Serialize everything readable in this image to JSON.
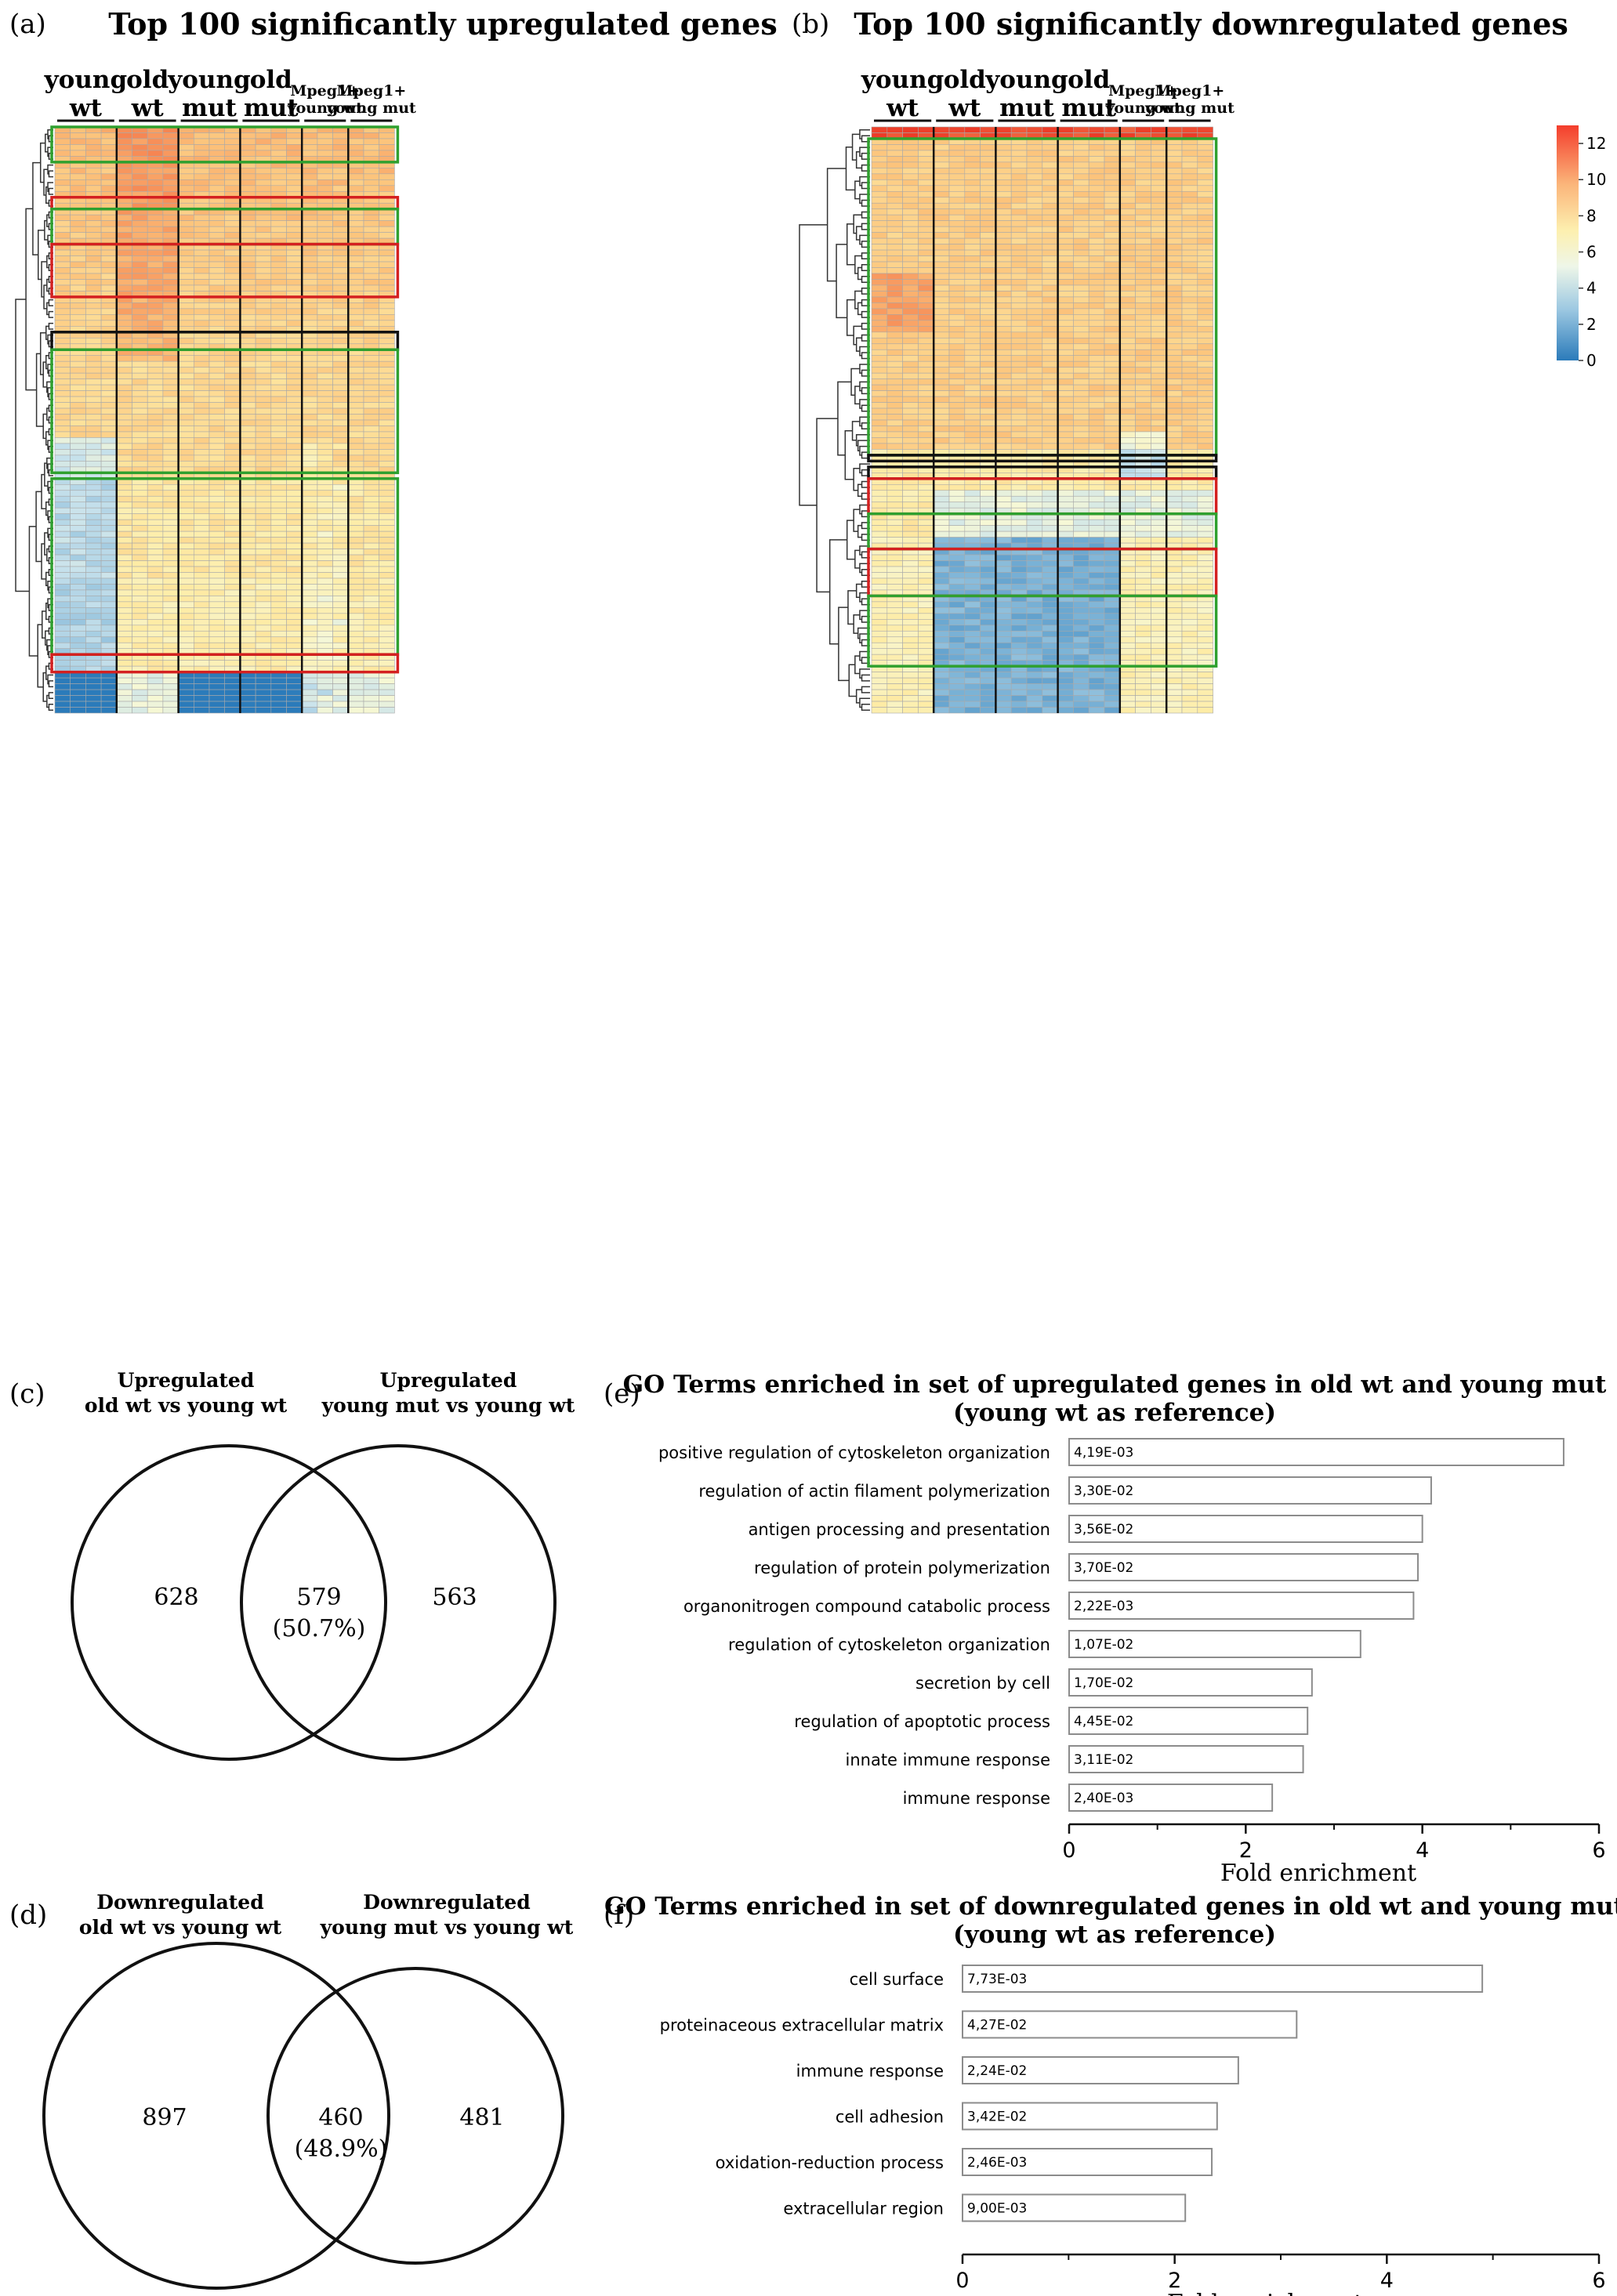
{
  "chart_data": [
    {
      "type": "heatmap",
      "panel": "(a)",
      "title": "Top 100 significantly upregulated genes",
      "groups": [
        {
          "label_lines": [
            "young",
            "wt"
          ],
          "columns": 4
        },
        {
          "label_lines": [
            "old",
            "wt"
          ],
          "columns": 4
        },
        {
          "label_lines": [
            "young",
            "mut"
          ],
          "columns": 4
        },
        {
          "label_lines": [
            "old",
            "mut"
          ],
          "columns": 4
        },
        {
          "label_lines": [
            "Mpeg1+",
            "young wt"
          ],
          "columns": 3
        },
        {
          "label_lines": [
            "Mpeg1+",
            "young mut"
          ],
          "columns": 3
        }
      ],
      "rows": 100,
      "value_range": [
        0,
        13
      ]
    },
    {
      "type": "heatmap",
      "panel": "(b)",
      "title": "Top 100 significantly downregulated genes",
      "groups": [
        {
          "label_lines": [
            "young",
            "wt"
          ],
          "columns": 4
        },
        {
          "label_lines": [
            "old",
            "wt"
          ],
          "columns": 4
        },
        {
          "label_lines": [
            "young",
            "mut"
          ],
          "columns": 4
        },
        {
          "label_lines": [
            "old",
            "mut"
          ],
          "columns": 4
        },
        {
          "label_lines": [
            "Mpeg1+",
            "young wt"
          ],
          "columns": 3
        },
        {
          "label_lines": [
            "Mpeg1+",
            "young mut"
          ],
          "columns": 3
        }
      ],
      "rows": 100,
      "value_range": [
        0,
        13
      ],
      "colorbar_ticks": [
        "12",
        "10",
        "8",
        "6",
        "4",
        "2",
        "0"
      ]
    },
    {
      "type": "venn",
      "panel": "(c)",
      "left_title": [
        "Upregulated",
        "old wt vs young wt"
      ],
      "right_title": [
        "Upregulated",
        "young mut vs young wt"
      ],
      "left_only": "628",
      "overlap": "579",
      "overlap_pct": "(50.7%)",
      "right_only": "563"
    },
    {
      "type": "venn",
      "panel": "(d)",
      "left_title": [
        "Downregulated",
        "old wt vs young wt"
      ],
      "right_title": [
        "Downregulated",
        "young mut vs young wt"
      ],
      "left_only": "897",
      "overlap": "460",
      "overlap_pct": "(48.9%)",
      "right_only": "481"
    },
    {
      "type": "bar",
      "orientation": "horizontal",
      "panel": "(e)",
      "title": [
        "GO Terms enriched in set of upregulated genes in old wt and young mut",
        "(young wt as reference)"
      ],
      "categories": [
        "positive regulation of cytoskeleton organization",
        "regulation of actin filament polymerization",
        "antigen processing and presentation",
        "regulation of protein polymerization",
        "organonitrogen compound catabolic process",
        "regulation of cytoskeleton organization",
        "secretion by cell",
        "regulation of apoptotic process",
        "innate immune response",
        "immune response"
      ],
      "values": [
        5.6,
        4.1,
        4.0,
        3.95,
        3.9,
        3.3,
        2.75,
        2.7,
        2.65,
        2.3
      ],
      "labels": [
        "4,19E-03",
        "3,30E-02",
        "3,56E-02",
        "3,70E-02",
        "2,22E-03",
        "1,07E-02",
        "1,70E-02",
        "4,45E-02",
        "3,11E-02",
        "2,40E-03"
      ],
      "xlabel": "Fold enrichment",
      "xlim": [
        0,
        6
      ],
      "xticks": [
        "0",
        "2",
        "4",
        "6"
      ]
    },
    {
      "type": "bar",
      "orientation": "horizontal",
      "panel": "(f)",
      "title": [
        "GO Terms enriched in set of downregulated genes in old wt and young mut",
        "(young wt as reference)"
      ],
      "categories": [
        "cell surface",
        "proteinaceous extracellular matrix",
        "immune response",
        "cell adhesion",
        "oxidation-reduction process",
        "extracellular region"
      ],
      "values": [
        4.9,
        3.15,
        2.6,
        2.4,
        2.35,
        2.1
      ],
      "labels": [
        "7,73E-03",
        "4,27E-02",
        "2,24E-02",
        "3,42E-02",
        "2,46E-03",
        "9,00E-03"
      ],
      "xlabel": "Fold enrichment",
      "xlim": [
        0,
        6
      ],
      "xticks": [
        "0",
        "2",
        "4",
        "6"
      ]
    }
  ]
}
